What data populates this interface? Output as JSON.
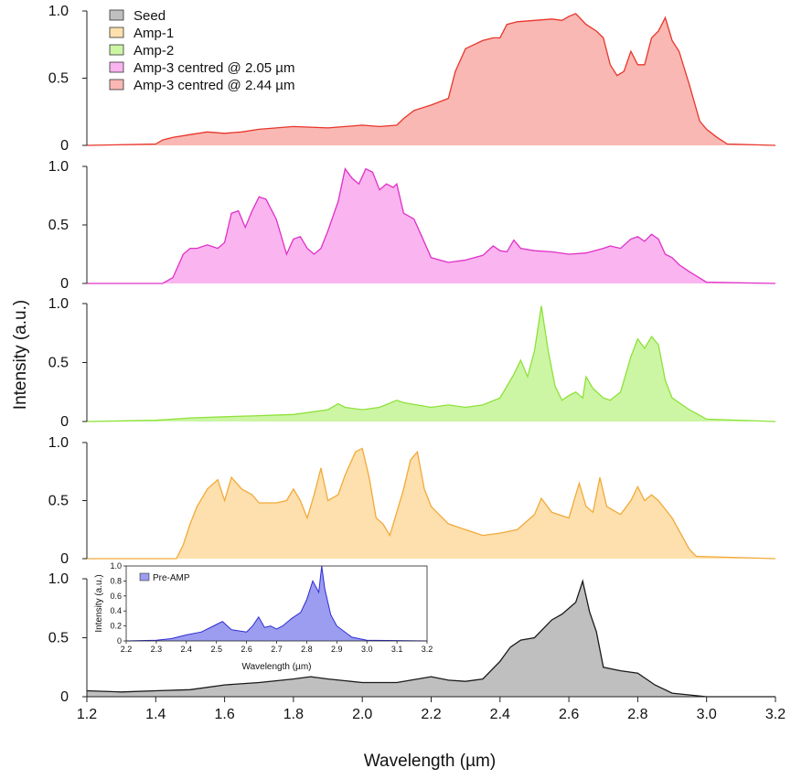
{
  "chart_data": {
    "type": "area",
    "title": "",
    "xlabel": "Wavelength (µm)",
    "ylabel": "Intensity (a.u.)",
    "xlim": [
      1.2,
      3.2
    ],
    "x_ticks": [
      "1.2",
      "1.4",
      "1.6",
      "1.8",
      "2.0",
      "2.2",
      "2.4",
      "2.6",
      "2.8",
      "3.0",
      "3.2"
    ],
    "y_ticks": [
      "0",
      "0.5",
      "1.0"
    ],
    "ylim": [
      0,
      1.0
    ],
    "legend": {
      "placement": "top-left"
    },
    "series": [
      {
        "name": "Amp-3 centred @ 2.44 µm",
        "stroke": "#e8352b",
        "fill": "#f9b8b3",
        "points": [
          [
            1.2,
            0.0
          ],
          [
            1.4,
            0.01
          ],
          [
            1.42,
            0.04
          ],
          [
            1.45,
            0.06
          ],
          [
            1.5,
            0.08
          ],
          [
            1.55,
            0.1
          ],
          [
            1.6,
            0.09
          ],
          [
            1.65,
            0.1
          ],
          [
            1.7,
            0.12
          ],
          [
            1.8,
            0.14
          ],
          [
            1.9,
            0.13
          ],
          [
            1.95,
            0.14
          ],
          [
            2.0,
            0.15
          ],
          [
            2.05,
            0.14
          ],
          [
            2.1,
            0.15
          ],
          [
            2.12,
            0.2
          ],
          [
            2.15,
            0.26
          ],
          [
            2.2,
            0.3
          ],
          [
            2.25,
            0.35
          ],
          [
            2.27,
            0.55
          ],
          [
            2.3,
            0.72
          ],
          [
            2.35,
            0.78
          ],
          [
            2.38,
            0.8
          ],
          [
            2.4,
            0.8
          ],
          [
            2.42,
            0.9
          ],
          [
            2.45,
            0.92
          ],
          [
            2.5,
            0.93
          ],
          [
            2.55,
            0.94
          ],
          [
            2.58,
            0.93
          ],
          [
            2.6,
            0.96
          ],
          [
            2.62,
            0.98
          ],
          [
            2.65,
            0.9
          ],
          [
            2.68,
            0.85
          ],
          [
            2.7,
            0.8
          ],
          [
            2.72,
            0.6
          ],
          [
            2.74,
            0.52
          ],
          [
            2.76,
            0.55
          ],
          [
            2.78,
            0.7
          ],
          [
            2.8,
            0.6
          ],
          [
            2.82,
            0.6
          ],
          [
            2.84,
            0.8
          ],
          [
            2.86,
            0.85
          ],
          [
            2.88,
            0.95
          ],
          [
            2.9,
            0.78
          ],
          [
            2.92,
            0.7
          ],
          [
            2.95,
            0.45
          ],
          [
            2.98,
            0.18
          ],
          [
            3.0,
            0.12
          ],
          [
            3.03,
            0.06
          ],
          [
            3.06,
            0.01
          ],
          [
            3.2,
            0.0
          ]
        ]
      },
      {
        "name": "Amp-3 centred @ 2.05 µm",
        "stroke": "#e030c8",
        "fill": "#fab4ef",
        "points": [
          [
            1.2,
            0.0
          ],
          [
            1.42,
            0.0
          ],
          [
            1.45,
            0.05
          ],
          [
            1.48,
            0.25
          ],
          [
            1.5,
            0.3
          ],
          [
            1.52,
            0.3
          ],
          [
            1.55,
            0.33
          ],
          [
            1.58,
            0.3
          ],
          [
            1.6,
            0.35
          ],
          [
            1.62,
            0.6
          ],
          [
            1.64,
            0.62
          ],
          [
            1.66,
            0.48
          ],
          [
            1.68,
            0.62
          ],
          [
            1.7,
            0.74
          ],
          [
            1.72,
            0.72
          ],
          [
            1.75,
            0.55
          ],
          [
            1.78,
            0.25
          ],
          [
            1.8,
            0.38
          ],
          [
            1.82,
            0.4
          ],
          [
            1.84,
            0.3
          ],
          [
            1.86,
            0.25
          ],
          [
            1.88,
            0.3
          ],
          [
            1.9,
            0.45
          ],
          [
            1.93,
            0.7
          ],
          [
            1.95,
            0.98
          ],
          [
            1.97,
            0.9
          ],
          [
            1.99,
            0.85
          ],
          [
            2.01,
            0.98
          ],
          [
            2.03,
            0.95
          ],
          [
            2.05,
            0.8
          ],
          [
            2.07,
            0.85
          ],
          [
            2.09,
            0.82
          ],
          [
            2.1,
            0.85
          ],
          [
            2.12,
            0.6
          ],
          [
            2.15,
            0.55
          ],
          [
            2.17,
            0.42
          ],
          [
            2.2,
            0.22
          ],
          [
            2.25,
            0.18
          ],
          [
            2.3,
            0.2
          ],
          [
            2.35,
            0.24
          ],
          [
            2.38,
            0.32
          ],
          [
            2.4,
            0.28
          ],
          [
            2.42,
            0.27
          ],
          [
            2.44,
            0.37
          ],
          [
            2.46,
            0.3
          ],
          [
            2.5,
            0.28
          ],
          [
            2.55,
            0.27
          ],
          [
            2.6,
            0.25
          ],
          [
            2.65,
            0.26
          ],
          [
            2.7,
            0.3
          ],
          [
            2.72,
            0.32
          ],
          [
            2.75,
            0.3
          ],
          [
            2.78,
            0.38
          ],
          [
            2.8,
            0.4
          ],
          [
            2.82,
            0.36
          ],
          [
            2.84,
            0.42
          ],
          [
            2.86,
            0.38
          ],
          [
            2.88,
            0.25
          ],
          [
            2.9,
            0.22
          ],
          [
            2.92,
            0.16
          ],
          [
            2.95,
            0.1
          ],
          [
            3.0,
            0.01
          ],
          [
            3.2,
            0.0
          ]
        ]
      },
      {
        "name": "Amp-2",
        "stroke": "#8de23a",
        "fill": "#ccf5a4",
        "points": [
          [
            1.2,
            0.0
          ],
          [
            1.4,
            0.01
          ],
          [
            1.5,
            0.03
          ],
          [
            1.6,
            0.04
          ],
          [
            1.7,
            0.05
          ],
          [
            1.8,
            0.06
          ],
          [
            1.9,
            0.1
          ],
          [
            1.93,
            0.15
          ],
          [
            1.95,
            0.12
          ],
          [
            2.0,
            0.1
          ],
          [
            2.05,
            0.12
          ],
          [
            2.1,
            0.18
          ],
          [
            2.12,
            0.16
          ],
          [
            2.2,
            0.12
          ],
          [
            2.25,
            0.14
          ],
          [
            2.3,
            0.12
          ],
          [
            2.35,
            0.14
          ],
          [
            2.4,
            0.2
          ],
          [
            2.44,
            0.4
          ],
          [
            2.46,
            0.52
          ],
          [
            2.48,
            0.38
          ],
          [
            2.5,
            0.6
          ],
          [
            2.52,
            0.98
          ],
          [
            2.54,
            0.6
          ],
          [
            2.56,
            0.3
          ],
          [
            2.58,
            0.18
          ],
          [
            2.6,
            0.22
          ],
          [
            2.62,
            0.25
          ],
          [
            2.64,
            0.2
          ],
          [
            2.65,
            0.38
          ],
          [
            2.67,
            0.28
          ],
          [
            2.7,
            0.2
          ],
          [
            2.72,
            0.18
          ],
          [
            2.75,
            0.25
          ],
          [
            2.78,
            0.55
          ],
          [
            2.8,
            0.7
          ],
          [
            2.82,
            0.62
          ],
          [
            2.84,
            0.72
          ],
          [
            2.86,
            0.65
          ],
          [
            2.88,
            0.35
          ],
          [
            2.9,
            0.2
          ],
          [
            2.95,
            0.1
          ],
          [
            3.0,
            0.02
          ],
          [
            3.2,
            0.0
          ]
        ]
      },
      {
        "name": "Amp-1",
        "stroke": "#f2a93b",
        "fill": "#fde0ad",
        "points": [
          [
            1.2,
            0.0
          ],
          [
            1.46,
            0.0
          ],
          [
            1.48,
            0.12
          ],
          [
            1.5,
            0.3
          ],
          [
            1.52,
            0.45
          ],
          [
            1.55,
            0.6
          ],
          [
            1.58,
            0.68
          ],
          [
            1.6,
            0.5
          ],
          [
            1.62,
            0.7
          ],
          [
            1.65,
            0.6
          ],
          [
            1.68,
            0.55
          ],
          [
            1.7,
            0.48
          ],
          [
            1.75,
            0.48
          ],
          [
            1.78,
            0.5
          ],
          [
            1.8,
            0.6
          ],
          [
            1.82,
            0.5
          ],
          [
            1.84,
            0.35
          ],
          [
            1.86,
            0.55
          ],
          [
            1.88,
            0.78
          ],
          [
            1.9,
            0.5
          ],
          [
            1.93,
            0.55
          ],
          [
            1.95,
            0.72
          ],
          [
            1.98,
            0.92
          ],
          [
            2.0,
            0.95
          ],
          [
            2.02,
            0.7
          ],
          [
            2.04,
            0.35
          ],
          [
            2.06,
            0.3
          ],
          [
            2.08,
            0.2
          ],
          [
            2.1,
            0.4
          ],
          [
            2.12,
            0.6
          ],
          [
            2.14,
            0.85
          ],
          [
            2.16,
            0.92
          ],
          [
            2.18,
            0.6
          ],
          [
            2.2,
            0.45
          ],
          [
            2.25,
            0.3
          ],
          [
            2.3,
            0.25
          ],
          [
            2.35,
            0.2
          ],
          [
            2.4,
            0.22
          ],
          [
            2.45,
            0.25
          ],
          [
            2.5,
            0.38
          ],
          [
            2.52,
            0.52
          ],
          [
            2.55,
            0.4
          ],
          [
            2.6,
            0.35
          ],
          [
            2.63,
            0.65
          ],
          [
            2.65,
            0.45
          ],
          [
            2.67,
            0.4
          ],
          [
            2.69,
            0.7
          ],
          [
            2.71,
            0.45
          ],
          [
            2.75,
            0.38
          ],
          [
            2.78,
            0.5
          ],
          [
            2.8,
            0.62
          ],
          [
            2.82,
            0.5
          ],
          [
            2.84,
            0.55
          ],
          [
            2.86,
            0.5
          ],
          [
            2.9,
            0.35
          ],
          [
            2.95,
            0.08
          ],
          [
            2.97,
            0.02
          ],
          [
            3.2,
            0.0
          ]
        ]
      },
      {
        "name": "Seed",
        "stroke": "#1a1a1a",
        "fill": "#bfbfbf",
        "points": [
          [
            1.2,
            0.05
          ],
          [
            1.3,
            0.04
          ],
          [
            1.4,
            0.05
          ],
          [
            1.5,
            0.06
          ],
          [
            1.6,
            0.1
          ],
          [
            1.7,
            0.12
          ],
          [
            1.8,
            0.15
          ],
          [
            1.85,
            0.17
          ],
          [
            1.9,
            0.15
          ],
          [
            2.0,
            0.12
          ],
          [
            2.1,
            0.12
          ],
          [
            2.2,
            0.17
          ],
          [
            2.25,
            0.14
          ],
          [
            2.3,
            0.13
          ],
          [
            2.35,
            0.15
          ],
          [
            2.4,
            0.3
          ],
          [
            2.43,
            0.42
          ],
          [
            2.46,
            0.48
          ],
          [
            2.5,
            0.5
          ],
          [
            2.55,
            0.65
          ],
          [
            2.58,
            0.7
          ],
          [
            2.6,
            0.75
          ],
          [
            2.62,
            0.8
          ],
          [
            2.64,
            0.98
          ],
          [
            2.66,
            0.72
          ],
          [
            2.68,
            0.55
          ],
          [
            2.7,
            0.25
          ],
          [
            2.75,
            0.22
          ],
          [
            2.8,
            0.2
          ],
          [
            2.85,
            0.1
          ],
          [
            2.9,
            0.03
          ],
          [
            3.0,
            0.0
          ],
          [
            3.2,
            0.0
          ]
        ]
      }
    ],
    "inset": {
      "xlabel": "Wavelength (µm)",
      "ylabel": "Intensity (a.u.)",
      "xlim": [
        2.2,
        3.2
      ],
      "x_ticks": [
        "2.2",
        "2.3",
        "2.4",
        "2.5",
        "2.6",
        "2.7",
        "2.8",
        "2.9",
        "3.0",
        "3.1",
        "3.2"
      ],
      "ylim": [
        0,
        1.0
      ],
      "y_ticks": [
        "0",
        "0.2",
        "0.4",
        "0.6",
        "0.8",
        "1.0"
      ],
      "series": [
        {
          "name": "Pre-AMP",
          "stroke": "#2b2bd6",
          "fill": "#9c9cf0",
          "points": [
            [
              2.2,
              0.0
            ],
            [
              2.3,
              0.01
            ],
            [
              2.35,
              0.03
            ],
            [
              2.4,
              0.08
            ],
            [
              2.45,
              0.12
            ],
            [
              2.5,
              0.22
            ],
            [
              2.52,
              0.26
            ],
            [
              2.55,
              0.15
            ],
            [
              2.6,
              0.12
            ],
            [
              2.62,
              0.2
            ],
            [
              2.64,
              0.32
            ],
            [
              2.66,
              0.18
            ],
            [
              2.68,
              0.2
            ],
            [
              2.7,
              0.16
            ],
            [
              2.72,
              0.2
            ],
            [
              2.75,
              0.3
            ],
            [
              2.78,
              0.38
            ],
            [
              2.8,
              0.55
            ],
            [
              2.82,
              0.8
            ],
            [
              2.84,
              0.65
            ],
            [
              2.85,
              1.0
            ],
            [
              2.86,
              0.7
            ],
            [
              2.88,
              0.35
            ],
            [
              2.9,
              0.2
            ],
            [
              2.95,
              0.05
            ],
            [
              3.0,
              0.01
            ],
            [
              3.2,
              0.0
            ]
          ]
        }
      ]
    }
  }
}
